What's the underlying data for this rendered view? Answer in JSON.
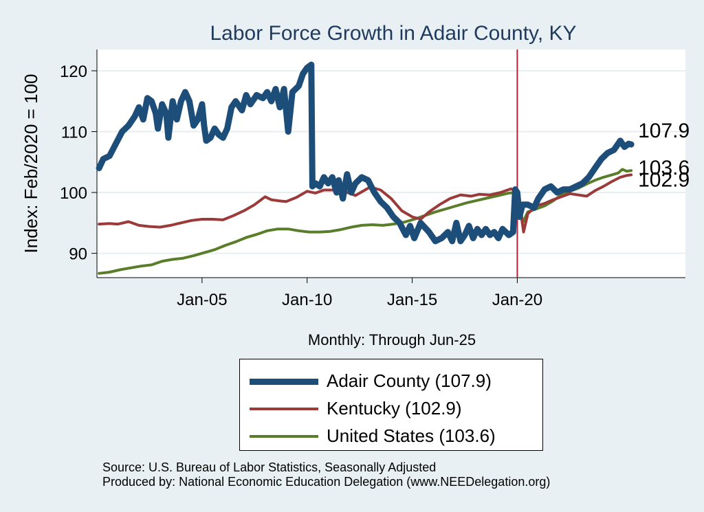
{
  "chart_data": {
    "type": "line",
    "title": "Labor Force Growth in Adair  County, KY",
    "ylabel": "Index: Feb/2020 = 100",
    "xlabel": "Monthly: Through Jun-25",
    "ylim": [
      86,
      123.5
    ],
    "xlim": [
      2000.0,
      2028.0
    ],
    "yticks": [
      90,
      100,
      110,
      120
    ],
    "xticks": [
      {
        "label": "Jan-05",
        "value": 2005.0
      },
      {
        "label": "Jan-10",
        "value": 2010.0
      },
      {
        "label": "Jan-15",
        "value": 2015.0
      },
      {
        "label": "Jan-20",
        "value": 2020.0
      }
    ],
    "reference_line": {
      "x": 2020.0,
      "color": "#b22234"
    },
    "grid": true,
    "legend_position": "bottom",
    "series": [
      {
        "name": "Adair  County (107.9)",
        "color": "#1d4e79",
        "width": 9,
        "end_label": "107.9",
        "points": [
          [
            2000.1,
            104.0
          ],
          [
            2000.3,
            105.5
          ],
          [
            2000.6,
            106.0
          ],
          [
            2000.9,
            108.0
          ],
          [
            2001.2,
            110.0
          ],
          [
            2001.5,
            111.0
          ],
          [
            2001.8,
            112.5
          ],
          [
            2002.0,
            114.0
          ],
          [
            2002.2,
            112.0
          ],
          [
            2002.4,
            115.5
          ],
          [
            2002.6,
            115.0
          ],
          [
            2002.8,
            113.0
          ],
          [
            2002.9,
            110.5
          ],
          [
            2003.1,
            114.5
          ],
          [
            2003.3,
            113.0
          ],
          [
            2003.4,
            109.0
          ],
          [
            2003.6,
            115.0
          ],
          [
            2003.8,
            112.0
          ],
          [
            2004.0,
            115.0
          ],
          [
            2004.2,
            116.5
          ],
          [
            2004.4,
            115.0
          ],
          [
            2004.6,
            111.0
          ],
          [
            2004.8,
            112.0
          ],
          [
            2005.0,
            114.5
          ],
          [
            2005.1,
            111.0
          ],
          [
            2005.2,
            108.5
          ],
          [
            2005.4,
            109.0
          ],
          [
            2005.6,
            110.5
          ],
          [
            2005.8,
            109.5
          ],
          [
            2006.0,
            109.0
          ],
          [
            2006.2,
            110.5
          ],
          [
            2006.4,
            114.0
          ],
          [
            2006.6,
            115.0
          ],
          [
            2006.9,
            113.5
          ],
          [
            2007.1,
            116.0
          ],
          [
            2007.3,
            114.5
          ],
          [
            2007.6,
            116.0
          ],
          [
            2007.9,
            115.5
          ],
          [
            2008.1,
            116.5
          ],
          [
            2008.3,
            115.0
          ],
          [
            2008.5,
            117.0
          ],
          [
            2008.7,
            114.0
          ],
          [
            2008.9,
            117.0
          ],
          [
            2009.1,
            110.0
          ],
          [
            2009.3,
            116.5
          ],
          [
            2009.6,
            117.5
          ],
          [
            2009.8,
            119.5
          ],
          [
            2010.0,
            120.5
          ],
          [
            2010.2,
            121.0
          ],
          [
            2010.25,
            101.0
          ],
          [
            2010.4,
            101.5
          ],
          [
            2010.6,
            101.0
          ],
          [
            2010.8,
            102.5
          ],
          [
            2011.0,
            101.5
          ],
          [
            2011.2,
            102.5
          ],
          [
            2011.4,
            100.0
          ],
          [
            2011.5,
            102.0
          ],
          [
            2011.7,
            99.0
          ],
          [
            2011.9,
            103.0
          ],
          [
            2012.1,
            100.0
          ],
          [
            2012.3,
            101.5
          ],
          [
            2012.6,
            102.5
          ],
          [
            2012.9,
            102.0
          ],
          [
            2013.2,
            100.0
          ],
          [
            2013.5,
            98.5
          ],
          [
            2013.8,
            97.5
          ],
          [
            2014.1,
            96.0
          ],
          [
            2014.4,
            95.0
          ],
          [
            2014.7,
            93.0
          ],
          [
            2014.9,
            94.5
          ],
          [
            2015.1,
            92.5
          ],
          [
            2015.4,
            95.0
          ],
          [
            2015.8,
            93.5
          ],
          [
            2016.1,
            92.0
          ],
          [
            2016.4,
            92.5
          ],
          [
            2016.7,
            93.5
          ],
          [
            2016.9,
            92.0
          ],
          [
            2017.1,
            95.0
          ],
          [
            2017.3,
            92.0
          ],
          [
            2017.5,
            93.0
          ],
          [
            2017.7,
            94.5
          ],
          [
            2017.9,
            92.5
          ],
          [
            2018.1,
            94.0
          ],
          [
            2018.3,
            93.0
          ],
          [
            2018.5,
            94.0
          ],
          [
            2018.7,
            93.0
          ],
          [
            2018.9,
            93.5
          ],
          [
            2019.1,
            92.5
          ],
          [
            2019.3,
            94.0
          ],
          [
            2019.6,
            93.0
          ],
          [
            2019.8,
            93.5
          ],
          [
            2019.9,
            100.5
          ],
          [
            2020.0,
            100.0
          ],
          [
            2020.1,
            96.0
          ],
          [
            2020.25,
            98.0
          ],
          [
            2020.5,
            98.0
          ],
          [
            2020.8,
            97.5
          ],
          [
            2021.0,
            99.0
          ],
          [
            2021.3,
            100.5
          ],
          [
            2021.6,
            101.0
          ],
          [
            2021.9,
            100.0
          ],
          [
            2022.2,
            100.5
          ],
          [
            2022.5,
            100.5
          ],
          [
            2022.8,
            101.0
          ],
          [
            2023.1,
            101.5
          ],
          [
            2023.4,
            102.5
          ],
          [
            2023.7,
            104.0
          ],
          [
            2024.0,
            105.5
          ],
          [
            2024.3,
            106.5
          ],
          [
            2024.6,
            107.0
          ],
          [
            2024.9,
            108.5
          ],
          [
            2025.1,
            107.5
          ],
          [
            2025.3,
            108.0
          ],
          [
            2025.42,
            107.9
          ]
        ]
      },
      {
        "name": "Kentucky (102.9)",
        "color": "#9c3a3a",
        "width": 4,
        "end_label": "102.9",
        "points": [
          [
            2000.1,
            94.8
          ],
          [
            2000.6,
            94.9
          ],
          [
            2001.0,
            94.8
          ],
          [
            2001.5,
            95.2
          ],
          [
            2002.0,
            94.6
          ],
          [
            2002.5,
            94.4
          ],
          [
            2003.0,
            94.3
          ],
          [
            2003.5,
            94.6
          ],
          [
            2004.0,
            95.0
          ],
          [
            2004.5,
            95.4
          ],
          [
            2005.0,
            95.6
          ],
          [
            2005.5,
            95.6
          ],
          [
            2006.0,
            95.5
          ],
          [
            2006.5,
            96.2
          ],
          [
            2007.0,
            97.0
          ],
          [
            2007.5,
            98.0
          ],
          [
            2008.0,
            99.3
          ],
          [
            2008.3,
            98.8
          ],
          [
            2008.7,
            98.6
          ],
          [
            2009.0,
            98.5
          ],
          [
            2009.5,
            99.2
          ],
          [
            2010.0,
            100.2
          ],
          [
            2010.4,
            99.9
          ],
          [
            2010.8,
            100.4
          ],
          [
            2011.2,
            100.4
          ],
          [
            2011.6,
            100.3
          ],
          [
            2012.0,
            99.9
          ],
          [
            2012.3,
            99.5
          ],
          [
            2012.7,
            100.3
          ],
          [
            2013.0,
            100.9
          ],
          [
            2013.5,
            100.4
          ],
          [
            2014.0,
            99.0
          ],
          [
            2014.5,
            97.0
          ],
          [
            2015.0,
            96.0
          ],
          [
            2015.4,
            95.6
          ],
          [
            2015.8,
            96.8
          ],
          [
            2016.3,
            98.0
          ],
          [
            2016.8,
            99.0
          ],
          [
            2017.3,
            99.6
          ],
          [
            2017.8,
            99.4
          ],
          [
            2018.2,
            99.7
          ],
          [
            2018.7,
            99.6
          ],
          [
            2019.2,
            100.0
          ],
          [
            2019.7,
            100.6
          ],
          [
            2020.0,
            100.0
          ],
          [
            2020.15,
            97.0
          ],
          [
            2020.3,
            93.5
          ],
          [
            2020.5,
            96.5
          ],
          [
            2020.9,
            97.8
          ],
          [
            2021.3,
            98.2
          ],
          [
            2021.7,
            98.8
          ],
          [
            2022.1,
            99.3
          ],
          [
            2022.5,
            99.8
          ],
          [
            2022.9,
            99.6
          ],
          [
            2023.3,
            99.4
          ],
          [
            2023.7,
            100.3
          ],
          [
            2024.1,
            101.0
          ],
          [
            2024.5,
            101.8
          ],
          [
            2024.9,
            102.5
          ],
          [
            2025.2,
            102.8
          ],
          [
            2025.42,
            102.9
          ]
        ]
      },
      {
        "name": "United States (103.6)",
        "color": "#5a7d2a",
        "width": 4,
        "end_label": "103.6",
        "points": [
          [
            2000.1,
            86.7
          ],
          [
            2000.6,
            86.9
          ],
          [
            2001.1,
            87.3
          ],
          [
            2001.6,
            87.6
          ],
          [
            2002.1,
            87.9
          ],
          [
            2002.6,
            88.1
          ],
          [
            2003.1,
            88.7
          ],
          [
            2003.6,
            89.0
          ],
          [
            2004.1,
            89.2
          ],
          [
            2004.6,
            89.6
          ],
          [
            2005.1,
            90.1
          ],
          [
            2005.6,
            90.6
          ],
          [
            2006.1,
            91.3
          ],
          [
            2006.6,
            91.9
          ],
          [
            2007.1,
            92.6
          ],
          [
            2007.6,
            93.1
          ],
          [
            2008.1,
            93.7
          ],
          [
            2008.6,
            94.0
          ],
          [
            2009.1,
            94.0
          ],
          [
            2009.6,
            93.7
          ],
          [
            2010.1,
            93.5
          ],
          [
            2010.6,
            93.5
          ],
          [
            2011.1,
            93.6
          ],
          [
            2011.6,
            93.9
          ],
          [
            2012.1,
            94.3
          ],
          [
            2012.6,
            94.6
          ],
          [
            2013.1,
            94.7
          ],
          [
            2013.6,
            94.6
          ],
          [
            2014.1,
            94.8
          ],
          [
            2014.6,
            95.1
          ],
          [
            2015.1,
            95.6
          ],
          [
            2015.6,
            96.2
          ],
          [
            2016.1,
            96.8
          ],
          [
            2016.6,
            97.3
          ],
          [
            2017.1,
            97.8
          ],
          [
            2017.6,
            98.3
          ],
          [
            2018.1,
            98.7
          ],
          [
            2018.6,
            99.1
          ],
          [
            2019.1,
            99.5
          ],
          [
            2019.6,
            99.9
          ],
          [
            2020.0,
            100.0
          ],
          [
            2020.1,
            99.0
          ],
          [
            2020.25,
            95.0
          ],
          [
            2020.5,
            96.8
          ],
          [
            2020.9,
            97.3
          ],
          [
            2021.3,
            97.8
          ],
          [
            2021.7,
            98.6
          ],
          [
            2022.1,
            99.6
          ],
          [
            2022.5,
            100.2
          ],
          [
            2022.9,
            100.7
          ],
          [
            2023.3,
            101.4
          ],
          [
            2023.7,
            102.0
          ],
          [
            2024.1,
            102.5
          ],
          [
            2024.5,
            102.9
          ],
          [
            2024.8,
            103.2
          ],
          [
            2025.0,
            103.8
          ],
          [
            2025.2,
            103.5
          ],
          [
            2025.42,
            103.6
          ]
        ]
      }
    ],
    "source_lines": [
      "Source: U.S. Bureau of Labor Statistics, Seasonally Adjusted",
      "Produced by: National Economic Education Delegation (www.NEEDelegation.org)"
    ]
  },
  "legend": {
    "items": [
      {
        "label": "Adair  County (107.9)",
        "color": "#1d4e79",
        "swatch_height": 9
      },
      {
        "label": "Kentucky (102.9)",
        "color": "#9c3a3a",
        "swatch_height": 4
      },
      {
        "label": "United States (103.6)",
        "color": "#5a7d2a",
        "swatch_height": 4
      }
    ]
  }
}
